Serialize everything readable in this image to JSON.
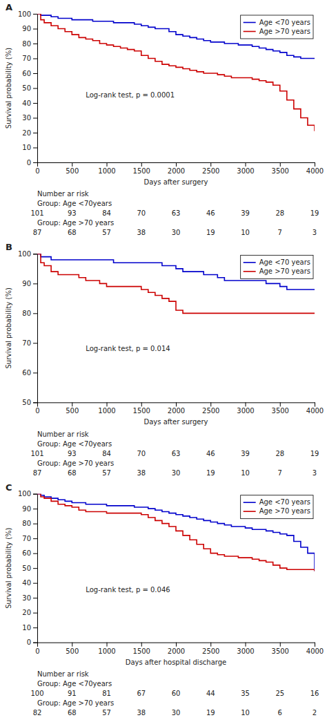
{
  "chart_data": [
    {
      "type": "step",
      "title": "A",
      "xlabel": "Days after surgery",
      "ylabel": "Survival probability (%)",
      "xlim": [
        0,
        4000
      ],
      "xticks": [
        0,
        500,
        1000,
        1500,
        2000,
        2500,
        3000,
        3500,
        4000
      ],
      "ylim": [
        0,
        100
      ],
      "yticks": [
        0,
        10,
        20,
        30,
        40,
        50,
        60,
        70,
        80,
        90,
        100
      ],
      "grid": false,
      "legend": "upper right",
      "annotations": [
        {
          "text": "Log-rank test, p = 0.0001",
          "x": 700,
          "y": 45
        }
      ],
      "x": [
        0,
        50,
        100,
        200,
        300,
        400,
        500,
        600,
        700,
        800,
        900,
        1000,
        1100,
        1200,
        1300,
        1400,
        1500,
        1600,
        1700,
        1800,
        1900,
        2000,
        2100,
        2200,
        2300,
        2400,
        2500,
        2600,
        2700,
        2800,
        2900,
        3000,
        3100,
        3200,
        3300,
        3400,
        3500,
        3600,
        3700,
        3800,
        3900,
        4000
      ],
      "series": [
        {
          "name": "Age <70 years",
          "color": "#0000CC",
          "values": [
            100,
            99,
            99,
            98,
            97,
            97,
            96,
            96,
            96,
            95,
            95,
            95,
            94,
            94,
            94,
            93,
            92,
            91,
            90,
            90,
            88,
            86,
            85,
            84,
            83,
            82,
            81,
            81,
            80,
            80,
            79,
            79,
            78,
            77,
            76,
            75,
            74,
            72,
            71,
            70,
            70,
            70
          ]
        },
        {
          "name": "Age >70 years",
          "color": "#CC0000",
          "values": [
            100,
            96,
            94,
            92,
            90,
            88,
            86,
            84,
            83,
            82,
            80,
            79,
            78,
            77,
            76,
            75,
            72,
            70,
            68,
            66,
            65,
            64,
            63,
            62,
            61,
            60,
            60,
            59,
            58,
            57,
            57,
            57,
            56,
            55,
            54,
            52,
            48,
            42,
            36,
            30,
            25,
            21
          ]
        }
      ],
      "risk_table": {
        "title": "Number ar risk",
        "x": [
          0,
          500,
          1000,
          1500,
          2000,
          2500,
          3000,
          3500,
          4000
        ],
        "groups": [
          {
            "name": "Group: Age <70years",
            "values": [
              101,
              93,
              84,
              70,
              63,
              46,
              39,
              28,
              19
            ]
          },
          {
            "name": "Group: Age >70 years",
            "values": [
              87,
              68,
              57,
              38,
              30,
              19,
              10,
              7,
              3
            ]
          }
        ]
      }
    },
    {
      "type": "step",
      "title": "B",
      "xlabel": "Days after surgery",
      "ylabel": "Survival probability (%)",
      "xlim": [
        0,
        4000
      ],
      "xticks": [
        0,
        500,
        1000,
        1500,
        2000,
        2500,
        3000,
        3500,
        4000
      ],
      "ylim": [
        50,
        100
      ],
      "yticks": [
        50,
        60,
        70,
        80,
        90,
        100
      ],
      "grid": false,
      "legend": "upper right",
      "annotations": [
        {
          "text": "Log-rank test, p = 0.014",
          "x": 700,
          "y": 68
        }
      ],
      "x": [
        0,
        50,
        100,
        200,
        300,
        400,
        500,
        600,
        700,
        800,
        900,
        1000,
        1100,
        1200,
        1300,
        1400,
        1500,
        1600,
        1700,
        1800,
        1900,
        2000,
        2100,
        2200,
        2300,
        2400,
        2500,
        2600,
        2700,
        2800,
        2900,
        3000,
        3100,
        3200,
        3300,
        3400,
        3500,
        3600,
        3700,
        3800,
        3900,
        4000
      ],
      "series": [
        {
          "name": "Age <70 years",
          "color": "#0000CC",
          "values": [
            100,
            99,
            99,
            98,
            98,
            98,
            98,
            98,
            98,
            98,
            98,
            98,
            97,
            97,
            97,
            97,
            97,
            97,
            97,
            96,
            96,
            95,
            94,
            94,
            94,
            93,
            93,
            92,
            91,
            91,
            91,
            91,
            91,
            91,
            90,
            90,
            89,
            88,
            88,
            88,
            88,
            88
          ]
        },
        {
          "name": "Age >70 years",
          "color": "#CC0000",
          "values": [
            100,
            97,
            96,
            94,
            93,
            93,
            93,
            92,
            91,
            91,
            90,
            89,
            89,
            89,
            89,
            89,
            88,
            87,
            86,
            85,
            84,
            81,
            80,
            80,
            80,
            80,
            80,
            80,
            80,
            80,
            80,
            80,
            80,
            80,
            80,
            80,
            80,
            80,
            80,
            80,
            80,
            80
          ]
        }
      ],
      "risk_table": {
        "title": "Number ar risk",
        "x": [
          0,
          500,
          1000,
          1500,
          2000,
          2500,
          3000,
          3500,
          4000
        ],
        "groups": [
          {
            "name": "Group: Age <70years",
            "values": [
              101,
              93,
              84,
              70,
              63,
              46,
              39,
              28,
              19
            ]
          },
          {
            "name": "Group: Age >70 years",
            "values": [
              87,
              68,
              57,
              38,
              30,
              19,
              10,
              7,
              3
            ]
          }
        ]
      }
    },
    {
      "type": "step",
      "title": "C",
      "xlabel": "Days after hospital discharge",
      "ylabel": "Survival probability (%)",
      "xlim": [
        0,
        4000
      ],
      "xticks": [
        0,
        500,
        1000,
        1500,
        2000,
        2500,
        3000,
        3500,
        4000
      ],
      "ylim": [
        0,
        100
      ],
      "yticks": [
        0,
        10,
        20,
        30,
        40,
        50,
        60,
        70,
        80,
        90,
        100
      ],
      "grid": false,
      "legend": "upper right",
      "annotations": [
        {
          "text": "Log-rank test, p = 0.046",
          "x": 700,
          "y": 35
        }
      ],
      "x": [
        0,
        50,
        100,
        200,
        300,
        400,
        500,
        600,
        700,
        800,
        900,
        1000,
        1100,
        1200,
        1300,
        1400,
        1500,
        1600,
        1700,
        1800,
        1900,
        2000,
        2100,
        2200,
        2300,
        2400,
        2500,
        2600,
        2700,
        2800,
        2900,
        3000,
        3100,
        3200,
        3300,
        3400,
        3500,
        3600,
        3700,
        3800,
        3900,
        4000
      ],
      "series": [
        {
          "name": "Age <70 years",
          "color": "#0000CC",
          "values": [
            100,
            99,
            98,
            97,
            96,
            95,
            94,
            94,
            93,
            93,
            93,
            92,
            92,
            92,
            92,
            91,
            91,
            90,
            89,
            88,
            87,
            86,
            85,
            84,
            83,
            82,
            81,
            80,
            79,
            78,
            78,
            77,
            76,
            76,
            75,
            74,
            73,
            72,
            68,
            64,
            60,
            48
          ]
        },
        {
          "name": "Age >70 years",
          "color": "#CC0000",
          "values": [
            100,
            98,
            97,
            95,
            93,
            92,
            91,
            89,
            88,
            88,
            88,
            87,
            87,
            87,
            87,
            87,
            86,
            84,
            82,
            80,
            78,
            75,
            72,
            69,
            66,
            63,
            60,
            59,
            58,
            58,
            57,
            57,
            56,
            55,
            54,
            52,
            50,
            49,
            49,
            49,
            49,
            48
          ]
        }
      ],
      "risk_table": {
        "title": "Number ar risk",
        "x": [
          0,
          500,
          1000,
          1500,
          2000,
          2500,
          3000,
          3500,
          4000
        ],
        "groups": [
          {
            "name": "Group: Age <70years",
            "values": [
              100,
              91,
              81,
              67,
              60,
              44,
              35,
              25,
              16
            ]
          },
          {
            "name": "Group: Age >70 years",
            "values": [
              82,
              68,
              57,
              38,
              30,
              19,
              10,
              6,
              2
            ]
          }
        ]
      }
    }
  ]
}
